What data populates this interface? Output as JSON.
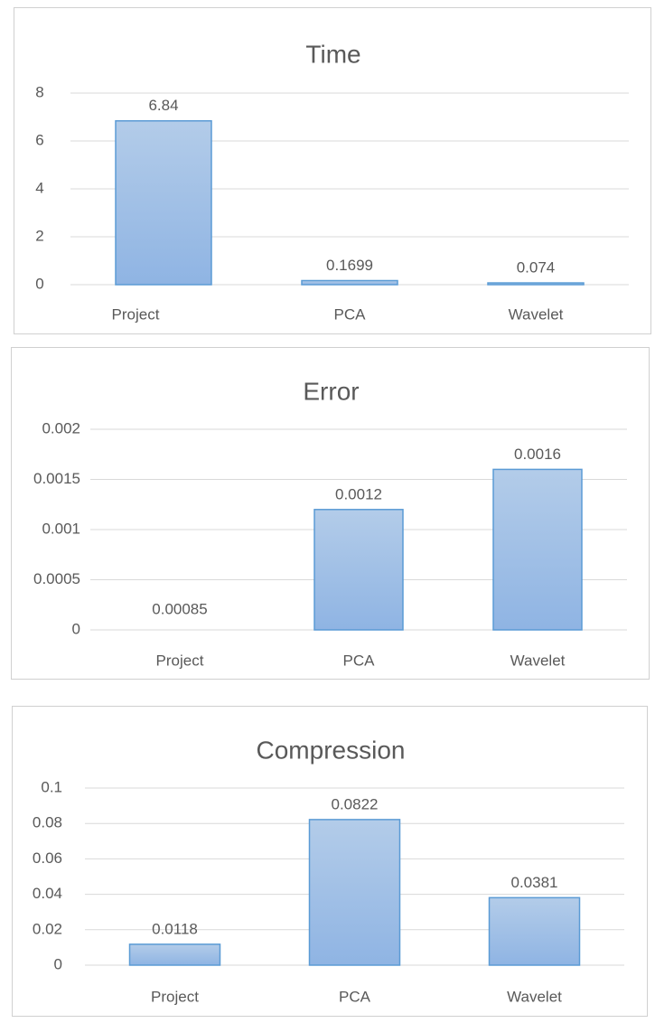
{
  "chart_data": [
    {
      "type": "bar",
      "title": "Time",
      "categories": [
        "Project",
        "PCA",
        "Wavelet"
      ],
      "values": [
        6.84,
        0.1699,
        0.074
      ],
      "data_labels": [
        "6.84",
        "0.1699",
        "0.074"
      ],
      "yticks": [
        "0",
        "2",
        "4",
        "6",
        "8"
      ],
      "ylim": [
        0,
        8
      ],
      "grid": true,
      "legend": "none"
    },
    {
      "type": "bar",
      "title": "Error",
      "categories": [
        "Project",
        "PCA",
        "Wavelet"
      ],
      "values": [
        0.00085,
        0.0012,
        0.0016
      ],
      "data_labels": [
        "0.00085",
        "0.0012",
        "0.0016"
      ],
      "yticks": [
        "0",
        "0.0005",
        "0.001",
        "0.0015",
        "0.002"
      ],
      "ylim": [
        0,
        0.002
      ],
      "grid": true,
      "legend": "none"
    },
    {
      "type": "bar",
      "title": "Compression",
      "categories": [
        "Project",
        "PCA",
        "Wavelet"
      ],
      "values": [
        0.0118,
        0.0822,
        0.0381
      ],
      "data_labels": [
        "0.0118",
        "0.0822",
        "0.0381"
      ],
      "yticks": [
        "0",
        "0.02",
        "0.04",
        "0.06",
        "0.08",
        "0.1"
      ],
      "ylim": [
        0,
        0.1
      ],
      "grid": true,
      "legend": "none"
    }
  ],
  "colors": {
    "bar_fill_top": "#b3cce9",
    "bar_fill_bottom": "#8fb4e3",
    "bar_stroke": "#5b9bd5",
    "gridline": "#d9d9d9",
    "text": "#595959"
  }
}
